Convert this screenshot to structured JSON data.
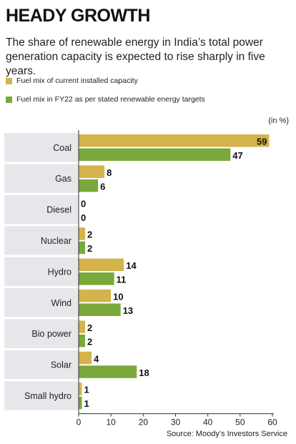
{
  "header": {
    "title": "HEADY GROWTH",
    "subtitle": "The share of renewable energy in India’s total power generation capacity is expected to rise sharply in five years."
  },
  "legend": [
    {
      "label": "Fuel mix of current installed capacity",
      "color": "#d4b24c"
    },
    {
      "label": "Fuel mix in FY22 as per stated renewable energy targets",
      "color": "#7aa83a"
    }
  ],
  "unit_label": "(in %)",
  "source": "Source: Moody’s Investors Service",
  "colors": {
    "band": "#e6e7ea",
    "current": "#d4b24c",
    "fy22": "#7aa83a",
    "axis": "#333333"
  },
  "chart_data": {
    "type": "bar",
    "orientation": "horizontal",
    "categories": [
      "Coal",
      "Gas",
      "Diesel",
      "Nuclear",
      "Hydro",
      "Wind",
      "Bio power",
      "Solar",
      "Small hydro"
    ],
    "series": [
      {
        "name": "Fuel mix of current installed capacity",
        "values": [
          59,
          8,
          0,
          2,
          14,
          10,
          2,
          4,
          1
        ]
      },
      {
        "name": "Fuel mix in FY22 as per stated renewable energy targets",
        "values": [
          47,
          6,
          0,
          2,
          11,
          13,
          2,
          18,
          1
        ]
      }
    ],
    "xlim": [
      0,
      60
    ],
    "xticks": [
      0,
      10,
      20,
      30,
      40,
      50,
      60
    ],
    "grid": false
  }
}
